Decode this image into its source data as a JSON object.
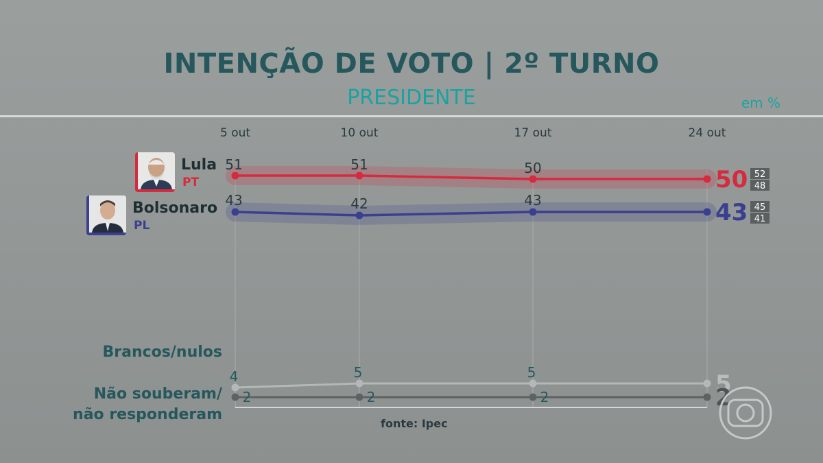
{
  "header": {
    "title": "INTENÇÃO DE VOTO | 2º TURNO",
    "subtitle": "PRESIDENTE",
    "unit": "em %"
  },
  "candidates": [
    {
      "name": "Lula",
      "party": "PT",
      "color": "#d62b3e",
      "photo": "lula-photo"
    },
    {
      "name": "Bolsonaro",
      "party": "PL",
      "color": "#3a3f8f",
      "photo": "bolsonaro-photo"
    }
  ],
  "labels": {
    "blank": "Brancos/nulos",
    "dontknow_1": "Não souberam/",
    "dontknow_2": "não responderam"
  },
  "source": "fonte: Ipec",
  "chart_data": {
    "type": "line",
    "x": [
      "5 out",
      "10 out",
      "17 out",
      "24 out"
    ],
    "series": [
      {
        "name": "Lula",
        "values": [
          51,
          51,
          50,
          50
        ],
        "color": "#d62b3e",
        "margin": [
          52,
          48
        ]
      },
      {
        "name": "Bolsonaro",
        "values": [
          43,
          42,
          43,
          43
        ],
        "color": "#3a3f8f",
        "margin": [
          45,
          41
        ]
      },
      {
        "name": "Brancos/nulos",
        "values": [
          4,
          5,
          5,
          5
        ],
        "color": "#b4b8b8"
      },
      {
        "name": "Não souberam/não responderam",
        "values": [
          2,
          2,
          2,
          2
        ],
        "color": "#5d6263"
      }
    ],
    "ylim": [
      0,
      55
    ],
    "grid": false
  }
}
